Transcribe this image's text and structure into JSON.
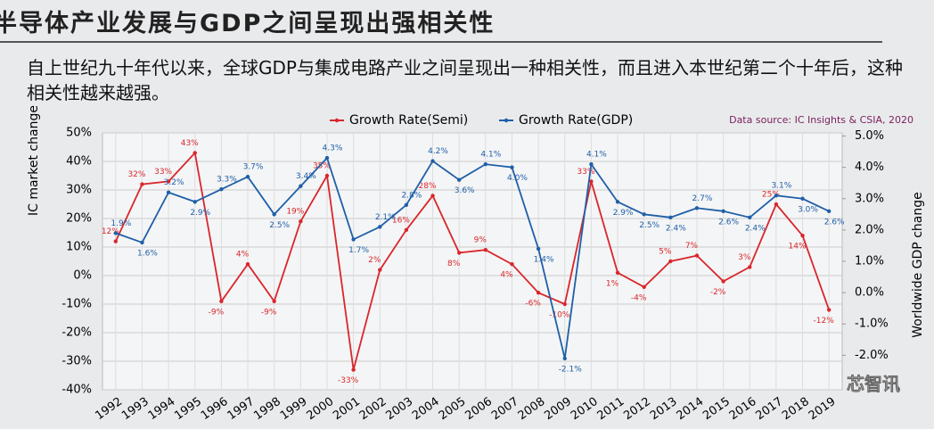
{
  "header": {
    "title": "半导体产业发展与GDP之间呈现出强相关性"
  },
  "paragraph": "自上世纪九十年代以来，全球GDP与集成电路产业之间呈现出一种相关性，而且进入本世纪第二个十年后，这种相关性越来越强。",
  "watermark": "芯智讯",
  "chart_data": {
    "type": "line",
    "source": "Data source: IC Insights & CSIA, 2020",
    "y_label": "IC market change",
    "y2_label": "Worldwide GDP change",
    "categories": [
      "1992",
      "1993",
      "1994",
      "1995",
      "1996",
      "1997",
      "1998",
      "1999",
      "2000",
      "2001",
      "2002",
      "2003",
      "2004",
      "2005",
      "2006",
      "2007",
      "2008",
      "2009",
      "2010",
      "2011",
      "2012",
      "2013",
      "2014",
      "2015",
      "2016",
      "2017",
      "2018",
      "2019"
    ],
    "series": [
      {
        "name": "Growth Rate(Semi)",
        "color": "#d9262b",
        "values": [
          12,
          32,
          33,
          43,
          -9,
          4,
          -9,
          19,
          35,
          -33,
          2,
          16,
          28,
          8,
          9,
          4,
          -6,
          -10,
          33,
          1,
          -4,
          5,
          7,
          -2,
          3,
          25,
          14,
          -12
        ],
        "value_labels": [
          "12%",
          "32%",
          "33%",
          "43%",
          "-9%",
          "4%",
          "-9%",
          "19%",
          "35%",
          "-33%",
          "2%",
          "16%",
          "28%",
          "8%",
          "9%",
          "4%",
          "-6%",
          "-10%",
          "33%",
          "1%",
          "-4%",
          "5%",
          "7%",
          "-2%",
          "3%",
          "25%",
          "14%",
          "-12%"
        ]
      },
      {
        "name": "Growth Rate(GDP)",
        "color": "#1f5fa8",
        "axis": "y2",
        "values": [
          1.9,
          1.6,
          3.2,
          2.9,
          3.3,
          3.7,
          2.5,
          3.4,
          4.3,
          1.7,
          2.1,
          2.8,
          4.2,
          3.6,
          4.1,
          4.0,
          1.4,
          -2.1,
          4.1,
          2.9,
          2.5,
          2.4,
          2.7,
          2.6,
          2.4,
          3.1,
          3.0,
          2.6
        ],
        "value_labels": [
          "1.9%",
          "1.6%",
          "3.2%",
          "2.9%",
          "3.3%",
          "3.7%",
          "2.5%",
          "3.4%",
          "4.3%",
          "1.7%",
          "2.1%",
          "2.8%",
          "4.2%",
          "3.6%",
          "4.1%",
          "4.0%",
          "1.4%",
          "-2.1%",
          "4.1%",
          "2.9%",
          "2.5%",
          "2.4%",
          "2.7%",
          "2.6%",
          "2.4%",
          "3.1%",
          "3.0%",
          "2.6%"
        ]
      }
    ],
    "ylim": [
      -40,
      50
    ],
    "yticks": [
      {
        "value": -40,
        "label": "-40%"
      },
      {
        "value": -30,
        "label": "-30%"
      },
      {
        "value": -20,
        "label": "-20%"
      },
      {
        "value": -10,
        "label": "-10%"
      },
      {
        "value": 0,
        "label": "0%"
      },
      {
        "value": 10,
        "label": "10%"
      },
      {
        "value": 20,
        "label": "20%"
      },
      {
        "value": 30,
        "label": "30%"
      },
      {
        "value": 40,
        "label": "40%"
      },
      {
        "value": 50,
        "label": "50%"
      }
    ],
    "y2lim": [
      -3.1,
      5.1
    ],
    "y2ticks": [
      {
        "value": -2,
        "label": "-2.0%"
      },
      {
        "value": -1,
        "label": "-1.0%"
      },
      {
        "value": 0,
        "label": "0.0%"
      },
      {
        "value": 1,
        "label": "1.0%"
      },
      {
        "value": 2,
        "label": "2.0%"
      },
      {
        "value": 3,
        "label": "3.0%"
      },
      {
        "value": 4,
        "label": "4.0%"
      },
      {
        "value": 5,
        "label": "5.0%"
      }
    ],
    "grid": true
  }
}
